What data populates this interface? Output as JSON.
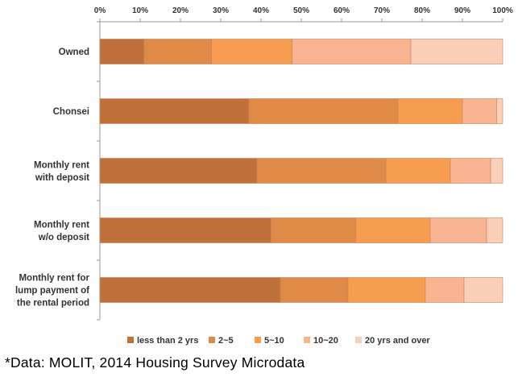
{
  "chart_data": {
    "type": "bar",
    "orientation": "horizontal",
    "stacked": true,
    "xlim": [
      0,
      100
    ],
    "x_tick_labels": [
      "0%",
      "10%",
      "20%",
      "30%",
      "40%",
      "50%",
      "60%",
      "70%",
      "80%",
      "90%",
      "100%"
    ],
    "x_axis_position": "top",
    "categories": [
      [
        "Owned"
      ],
      [
        "Chonsei"
      ],
      [
        "Monthly rent",
        "with deposit"
      ],
      [
        "Monthly rent",
        "w/o deposit"
      ],
      [
        "Monthly rent for",
        "lump payment of",
        "the rental period"
      ]
    ],
    "series": [
      {
        "name": "less than 2 yrs",
        "color": "#c0703a",
        "values": [
          11,
          37,
          39,
          42.5,
          44.8
        ]
      },
      {
        "name": "2~5",
        "color": "#e08a48",
        "values": [
          16.7,
          37,
          32,
          21,
          16.8
        ]
      },
      {
        "name": "5~10",
        "color": "#f69d4f",
        "values": [
          20,
          16,
          16,
          18.5,
          19.2
        ]
      },
      {
        "name": "10~20",
        "color": "#f9b592",
        "values": [
          29.5,
          8.5,
          10,
          14,
          9.6
        ]
      },
      {
        "name": "20 yrs and over",
        "color": "#fbd0b8",
        "values": [
          22.8,
          1.5,
          3,
          4,
          9.6
        ]
      }
    ],
    "legend_position": "bottom",
    "grid": false
  },
  "footnote": "*Data: MOLIT, 2014 Housing Survey Microdata"
}
